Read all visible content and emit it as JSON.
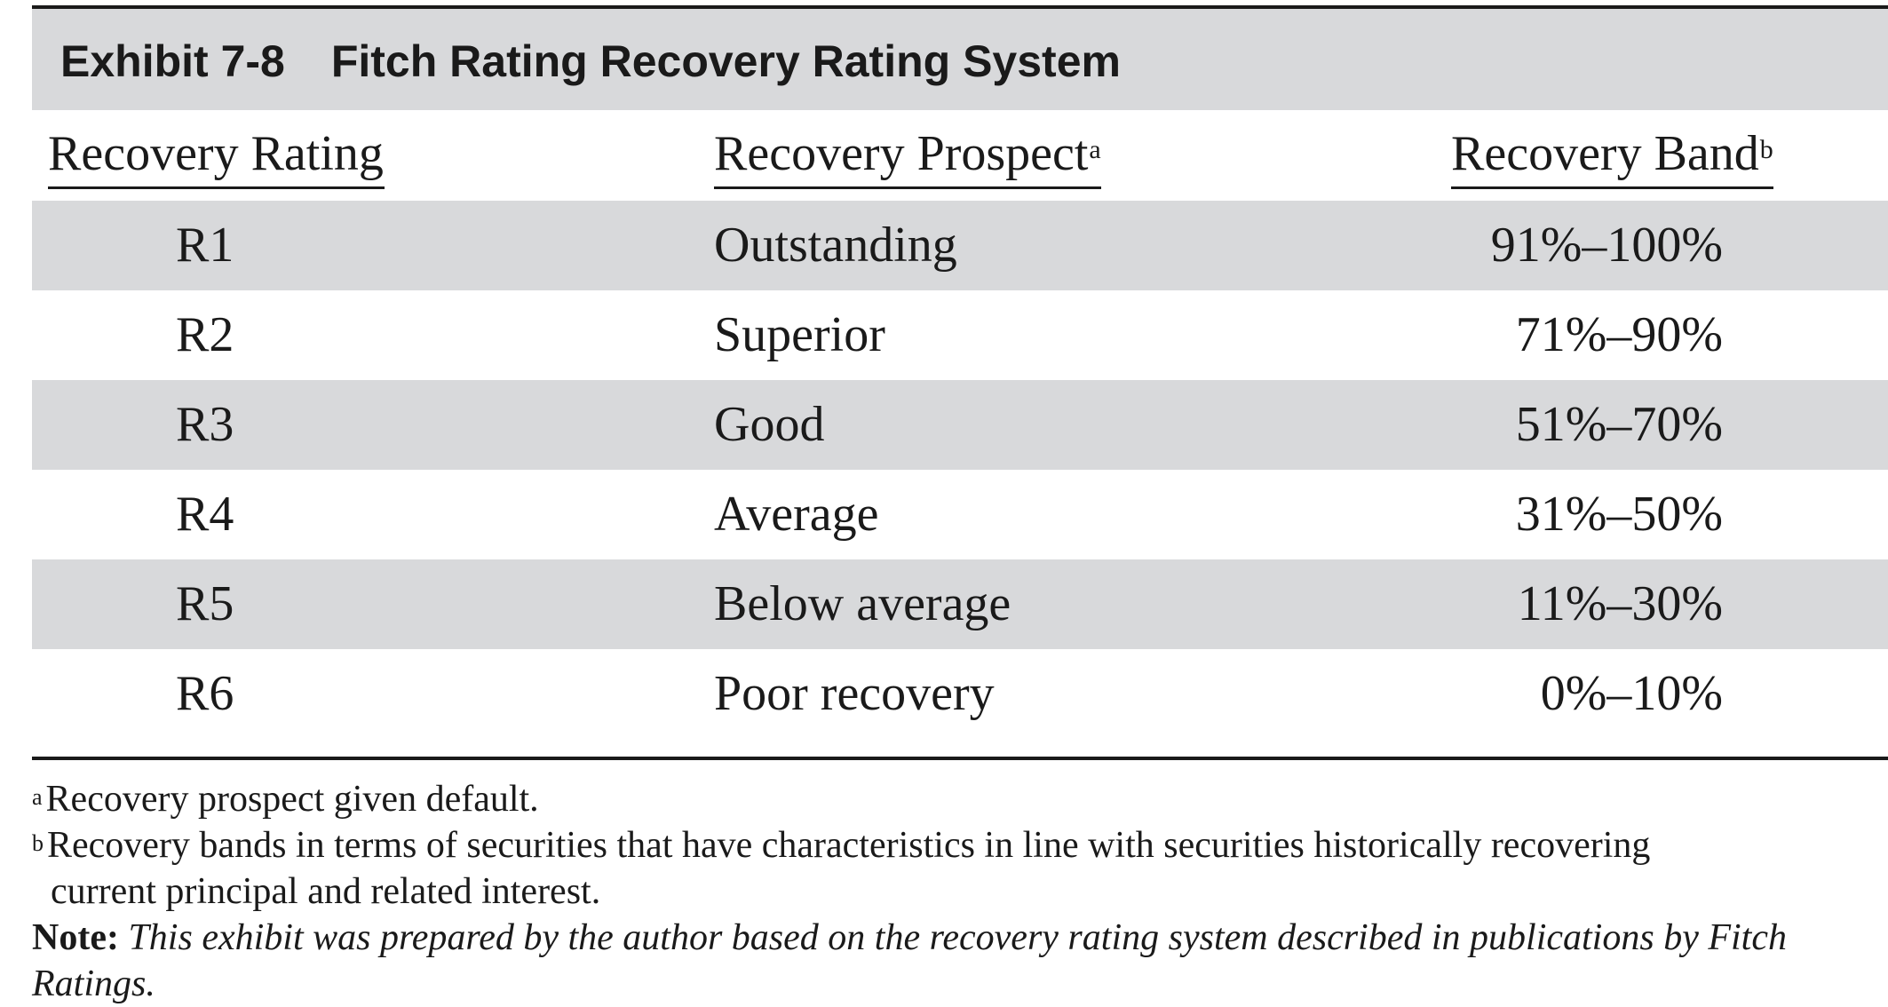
{
  "exhibit": {
    "number": "Exhibit 7-8",
    "title": "Fitch Rating Recovery Rating System"
  },
  "table": {
    "headers": [
      {
        "label": "Recovery Rating",
        "sup": ""
      },
      {
        "label": "Recovery Prospect",
        "sup": "a"
      },
      {
        "label": "Recovery Band",
        "sup": "b"
      }
    ],
    "rows": [
      {
        "rating": "R1",
        "prospect": "Outstanding",
        "band": "91%–100%"
      },
      {
        "rating": "R2",
        "prospect": "Superior",
        "band": "71%–90%"
      },
      {
        "rating": "R3",
        "prospect": "Good",
        "band": "51%–70%"
      },
      {
        "rating": "R4",
        "prospect": "Average",
        "band": "31%–50%"
      },
      {
        "rating": "R5",
        "prospect": "Below average",
        "band": "11%–30%"
      },
      {
        "rating": "R6",
        "prospect": "Poor recovery",
        "band": "0%–10%"
      }
    ]
  },
  "footnotes": [
    {
      "mark": "a",
      "line1": "Recovery prospect given default.",
      "line2": ""
    },
    {
      "mark": "b",
      "line1": "Recovery bands in terms of securities that have characteristics in line with securities historically recovering",
      "line2": "current principal and related interest."
    }
  ],
  "note": {
    "label": "Note:",
    "text": "This exhibit was prepared by the author based on the recovery rating system described in publications by Fitch Ratings."
  },
  "colors": {
    "band_shade": "#d8d9db",
    "text": "#1a1a1a"
  }
}
